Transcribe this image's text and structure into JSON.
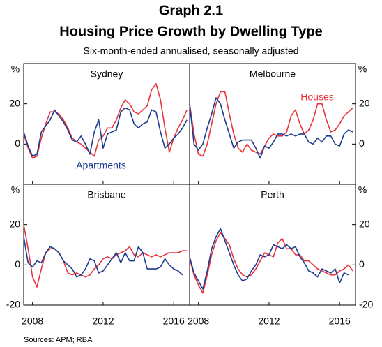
{
  "title": "Graph 2.1",
  "heading": "Housing Price Growth by Dwelling Type",
  "subtitle": "Six-month-ended annualised, seasonally adjusted",
  "unit": "%",
  "source": "Sources: APM; RBA",
  "chart_data": [
    {
      "type": "line",
      "title": "Sydney",
      "xlim": [
        2007.5,
        2016.9
      ],
      "xticks": [
        2008,
        2012,
        2016
      ],
      "ylim": [
        -20,
        40
      ],
      "yticks": [
        0,
        20
      ],
      "x": [
        2007.5,
        2007.75,
        2008,
        2008.25,
        2008.5,
        2008.75,
        2009,
        2009.25,
        2009.5,
        2009.75,
        2010,
        2010.25,
        2010.5,
        2010.75,
        2011,
        2011.25,
        2011.5,
        2011.75,
        2012,
        2012.25,
        2012.5,
        2012.75,
        2013,
        2013.25,
        2013.5,
        2013.75,
        2014,
        2014.25,
        2014.5,
        2014.75,
        2015,
        2015.25,
        2015.5,
        2015.75,
        2016,
        2016.25,
        2016.5,
        2016.75
      ],
      "series": [
        {
          "color": "#e8333c",
          "values": [
            5,
            -2,
            -7,
            -6,
            3,
            10,
            16,
            16,
            15,
            12,
            8,
            3,
            1,
            0,
            -2,
            -4,
            -6,
            2,
            4,
            8,
            8,
            12,
            18,
            22,
            20,
            16,
            15,
            17,
            19,
            27,
            30,
            22,
            8,
            -4,
            3,
            8,
            12,
            17
          ]
        },
        {
          "name": "Apartments",
          "color": "#1d3c8f",
          "values": [
            6,
            -1,
            -6,
            -5,
            6,
            9,
            12,
            17,
            14,
            11,
            7,
            2,
            1,
            4,
            0,
            -5,
            6,
            12,
            -2,
            5,
            6,
            7,
            16,
            18,
            17,
            10,
            8,
            10,
            11,
            17,
            16,
            6,
            -2,
            0,
            3,
            5,
            8,
            12
          ]
        }
      ]
    },
    {
      "type": "line",
      "title": "Melbourne",
      "xlim": [
        2007.5,
        2016.9
      ],
      "xticks": [
        2008,
        2012,
        2016
      ],
      "ylim": [
        -20,
        40
      ],
      "yticks": [
        0,
        20
      ],
      "x": [
        2007.5,
        2007.75,
        2008,
        2008.25,
        2008.5,
        2008.75,
        2009,
        2009.25,
        2009.5,
        2009.75,
        2010,
        2010.25,
        2010.5,
        2010.75,
        2011,
        2011.25,
        2011.5,
        2011.75,
        2012,
        2012.25,
        2012.5,
        2012.75,
        2013,
        2013.25,
        2013.5,
        2013.75,
        2014,
        2014.25,
        2014.5,
        2014.75,
        2015,
        2015.25,
        2015.5,
        2015.75,
        2016,
        2016.25,
        2016.5,
        2016.75
      ],
      "series": [
        {
          "name": "Houses",
          "color": "#e8333c",
          "values": [
            20,
            5,
            -5,
            -6,
            0,
            10,
            20,
            26,
            26,
            15,
            5,
            -2,
            -4,
            0,
            -3,
            -4,
            -5,
            -1,
            3,
            5,
            4,
            4,
            6,
            14,
            17,
            10,
            5,
            7,
            12,
            20,
            20,
            12,
            6,
            7,
            10,
            14,
            16,
            18
          ]
        },
        {
          "color": "#1d3c8f",
          "values": [
            20,
            0,
            -3,
            0,
            8,
            15,
            23,
            20,
            12,
            5,
            -2,
            1,
            2,
            2,
            2,
            -2,
            -7,
            -1,
            -2,
            1,
            5,
            5,
            4,
            5,
            4,
            5,
            5,
            1,
            0,
            3,
            1,
            4,
            4,
            0,
            -1,
            5,
            7,
            6
          ]
        }
      ]
    },
    {
      "type": "line",
      "title": "Brisbane",
      "xlim": [
        2007.5,
        2016.9
      ],
      "xticks": [
        2008,
        2012,
        2016
      ],
      "ylim": [
        -20,
        40
      ],
      "yticks": [
        -20,
        0,
        20
      ],
      "x": [
        2007.5,
        2007.75,
        2008,
        2008.25,
        2008.5,
        2008.75,
        2009,
        2009.25,
        2009.5,
        2009.75,
        2010,
        2010.25,
        2010.5,
        2010.75,
        2011,
        2011.25,
        2011.5,
        2011.75,
        2012,
        2012.25,
        2012.5,
        2012.75,
        2013,
        2013.25,
        2013.5,
        2013.75,
        2014,
        2014.25,
        2014.5,
        2014.75,
        2015,
        2015.25,
        2015.5,
        2015.75,
        2016,
        2016.25,
        2016.5,
        2016.75
      ],
      "series": [
        {
          "color": "#e8333c",
          "values": [
            20,
            8,
            -6,
            -11,
            -2,
            6,
            8,
            8,
            6,
            2,
            -4,
            -5,
            -4,
            -5,
            -6,
            -5,
            -2,
            0,
            3,
            4,
            3,
            5,
            6,
            7,
            9,
            5,
            4,
            6,
            5,
            4,
            5,
            4,
            5,
            6,
            6,
            6,
            7,
            7
          ]
        },
        {
          "color": "#1d3c8f",
          "values": [
            14,
            1,
            -1,
            2,
            1,
            6,
            9,
            8,
            6,
            2,
            0,
            -2,
            -6,
            -5,
            -2,
            3,
            2,
            -4,
            -3,
            0,
            3,
            6,
            1,
            6,
            2,
            2,
            9,
            6,
            -2,
            -2,
            -2,
            -1,
            3,
            0,
            -2,
            -3,
            -5,
            null
          ]
        }
      ]
    },
    {
      "type": "line",
      "title": "Perth",
      "xlim": [
        2007.5,
        2016.9
      ],
      "xticks": [
        2008,
        2012,
        2016
      ],
      "ylim": [
        -20,
        40
      ],
      "yticks": [
        -20,
        0,
        20
      ],
      "x": [
        2007.5,
        2007.75,
        2008,
        2008.25,
        2008.5,
        2008.75,
        2009,
        2009.25,
        2009.5,
        2009.75,
        2010,
        2010.25,
        2010.5,
        2010.75,
        2011,
        2011.25,
        2011.5,
        2011.75,
        2012,
        2012.25,
        2012.5,
        2012.75,
        2013,
        2013.25,
        2013.5,
        2013.75,
        2014,
        2014.25,
        2014.5,
        2014.75,
        2015,
        2015.25,
        2015.5,
        2015.75,
        2016,
        2016.25,
        2016.5,
        2016.75
      ],
      "series": [
        {
          "color": "#e8333c",
          "values": [
            3,
            -5,
            -10,
            -14,
            -5,
            5,
            12,
            16,
            13,
            10,
            3,
            -2,
            -5,
            -6,
            -5,
            -2,
            2,
            6,
            5,
            4,
            11,
            13,
            8,
            8,
            5,
            5,
            2,
            2,
            0,
            -2,
            -3,
            -4,
            -5,
            -5,
            -3,
            -2,
            0,
            -3
          ]
        },
        {
          "color": "#1d3c8f",
          "values": [
            4,
            -4,
            -8,
            -12,
            -3,
            8,
            14,
            18,
            12,
            6,
            0,
            -5,
            -8,
            -7,
            -3,
            0,
            5,
            4,
            5,
            10,
            9,
            8,
            10,
            8,
            9,
            4,
            1,
            -3,
            -4,
            -6,
            -2,
            -3,
            -4,
            -2,
            -9,
            -4,
            -5,
            null
          ]
        }
      ]
    }
  ]
}
